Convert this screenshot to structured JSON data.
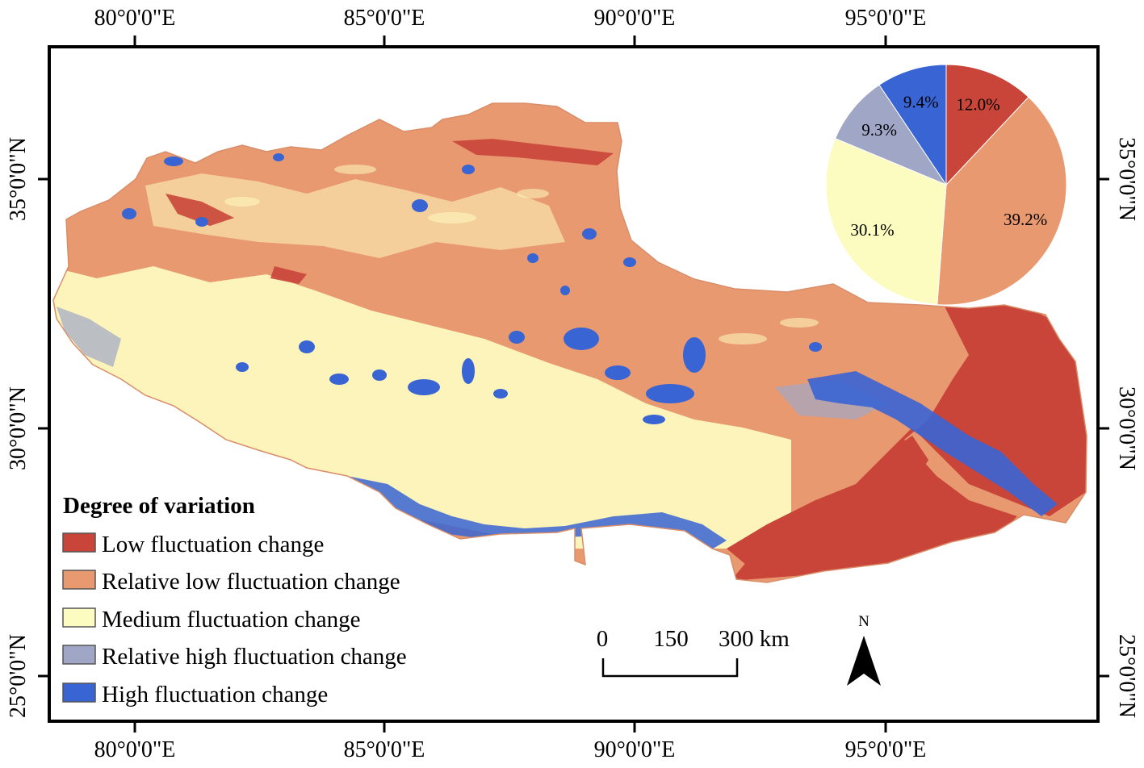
{
  "graticule": {
    "longitudes_top": [
      "80°0'0\"E",
      "85°0'0\"E",
      "90°0'0\"E",
      "95°0'0\"E"
    ],
    "longitudes_bottom": [
      "80°0'0\"E",
      "85°0'0\"E",
      "90°0'0\"E",
      "95°0'0\"E"
    ],
    "latitudes_left": [
      "35°0'0\"N",
      "30°0'0\"N",
      "25°0'0\"N"
    ],
    "latitudes_right": [
      "35°0'0\"N",
      "30°0'0\"N",
      "25°0'0\"N"
    ]
  },
  "legend": {
    "title": "Degree of variation",
    "items": [
      {
        "label": "Low fluctuation change",
        "color": "#c9453a"
      },
      {
        "label": "Relative low fluctuation change",
        "color": "#e9996f"
      },
      {
        "label": "Medium fluctuation change",
        "color": "#fdfcc0"
      },
      {
        "label": "Relative high fluctuation change",
        "color": "#a0a6c6"
      },
      {
        "label": "High fluctuation change",
        "color": "#3864d4"
      }
    ]
  },
  "pie": {
    "slices": [
      {
        "label": "12.0%",
        "value": 12.0,
        "color": "#c9453a"
      },
      {
        "label": "39.2%",
        "value": 39.2,
        "color": "#e9996f"
      },
      {
        "label": "30.1%",
        "value": 30.1,
        "color": "#fdfcc0"
      },
      {
        "label": "9.3%",
        "value": 9.3,
        "color": "#a0a6c6"
      },
      {
        "label": "9.4%",
        "value": 9.4,
        "color": "#3864d4"
      }
    ]
  },
  "scale_bar": {
    "labels": [
      "0",
      "150",
      "300 km"
    ]
  },
  "north_arrow": {
    "label": "N",
    "icon": "north-arrow-icon"
  }
}
